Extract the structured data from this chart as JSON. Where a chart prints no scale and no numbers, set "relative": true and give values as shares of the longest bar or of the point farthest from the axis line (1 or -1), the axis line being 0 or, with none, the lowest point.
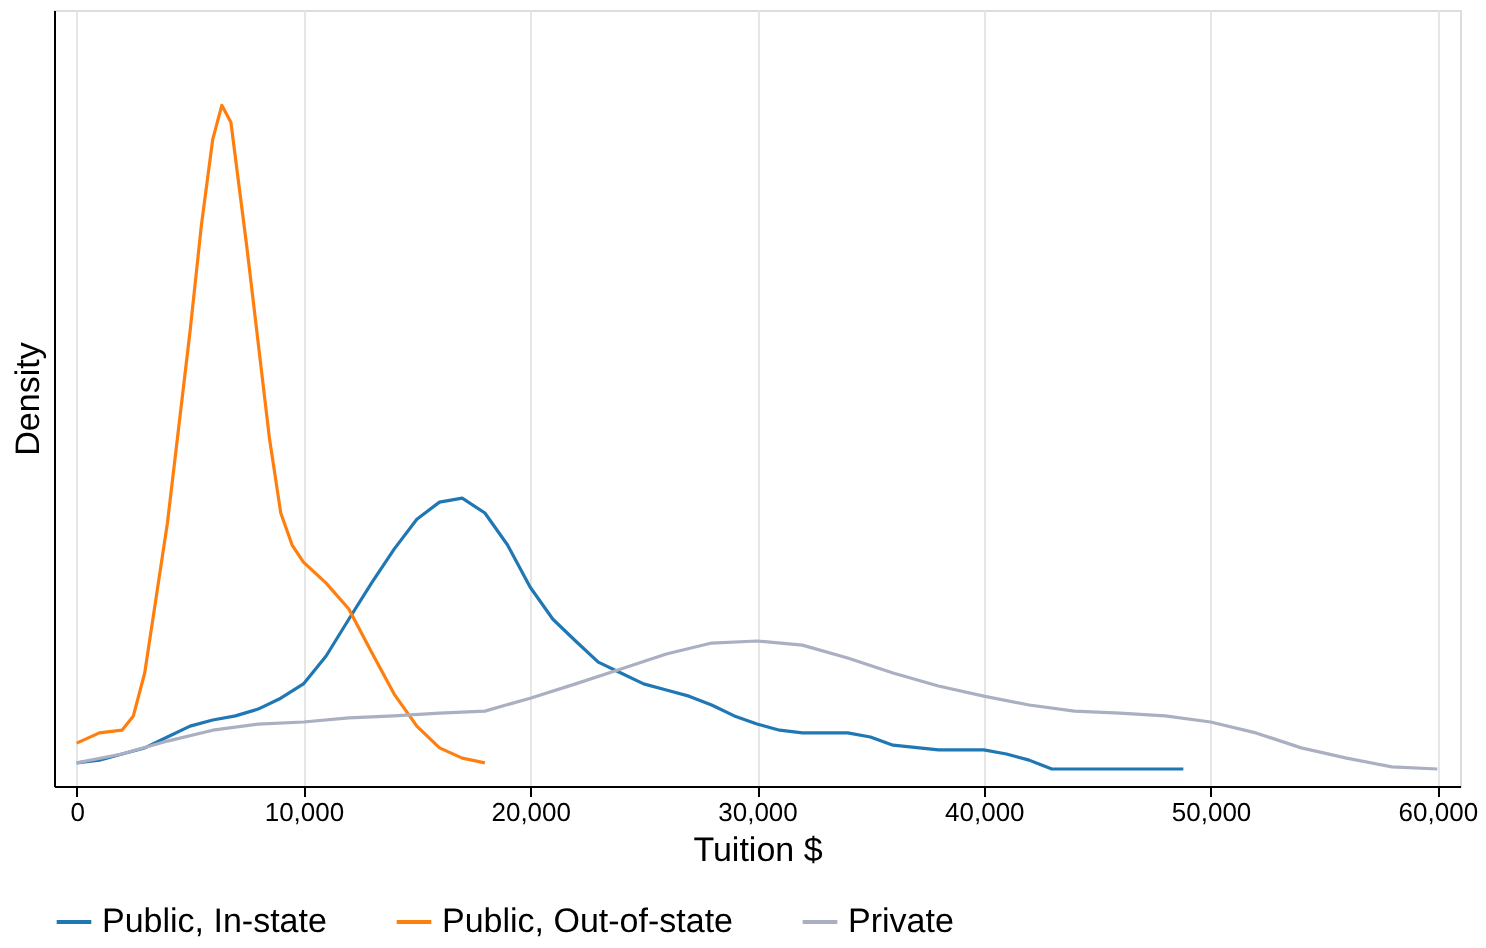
{
  "chart_data": {
    "type": "line",
    "xlabel": "Tuition $",
    "ylabel": "Density",
    "relative": true,
    "grid": "x",
    "legend": "bottom",
    "line_style": "solid",
    "marker": "none",
    "xlim": [
      -1000,
      61000
    ],
    "xticks": [
      0,
      {
        "value": 10000,
        "label": "10,000"
      },
      {
        "value": 20000,
        "label": "20,000"
      },
      {
        "value": 30000,
        "label": "30,000"
      },
      {
        "value": 40000,
        "label": "40,000"
      },
      {
        "value": 50000,
        "label": "50,000"
      },
      {
        "value": 60000,
        "label": "60,000"
      }
    ],
    "series": [
      {
        "name": "Public, In-state",
        "color": "#1f77b4",
        "x": [
          0,
          1000,
          2000,
          3000,
          4000,
          5000,
          6000,
          7000,
          8000,
          9000,
          10000,
          11000,
          12000,
          13000,
          14000,
          15000,
          16000,
          17000,
          18000,
          19000,
          20000,
          21000,
          22000,
          23000,
          24000,
          25000,
          26000,
          27000,
          28000,
          29000,
          30000,
          31000,
          32000,
          34000,
          35000,
          36000,
          38000,
          40000,
          41000,
          42000,
          43000,
          45000,
          48800
        ],
        "values": [
          0.034,
          0.038,
          0.047,
          0.056,
          0.072,
          0.088,
          0.097,
          0.103,
          0.113,
          0.129,
          0.15,
          0.191,
          0.245,
          0.298,
          0.348,
          0.392,
          0.417,
          0.423,
          0.401,
          0.354,
          0.292,
          0.245,
          0.213,
          0.182,
          0.166,
          0.15,
          0.141,
          0.132,
          0.119,
          0.103,
          0.091,
          0.082,
          0.078,
          0.078,
          0.072,
          0.06,
          0.053,
          0.053,
          0.047,
          0.038,
          0.025,
          0.025,
          0.025
        ]
      },
      {
        "name": "Public, Out-of-state",
        "color": "#ff7f0e",
        "x": [
          0,
          1000,
          2000,
          2500,
          3000,
          4000,
          5000,
          5500,
          6000,
          6400,
          6800,
          7500,
          8000,
          8500,
          9000,
          9500,
          10000,
          11000,
          12000,
          13000,
          14000,
          15000,
          16000,
          17000,
          18000
        ],
        "values": [
          0.063,
          0.078,
          0.082,
          0.103,
          0.166,
          0.386,
          0.668,
          0.824,
          0.95,
          1,
          0.975,
          0.793,
          0.652,
          0.511,
          0.401,
          0.354,
          0.329,
          0.298,
          0.26,
          0.197,
          0.135,
          0.088,
          0.056,
          0.041,
          0.034
        ]
      },
      {
        "name": "Private",
        "color": "#aab0c2",
        "x": [
          0,
          2000,
          4000,
          6000,
          8000,
          10000,
          12000,
          14000,
          16000,
          18000,
          20000,
          22000,
          24000,
          26000,
          28000,
          30000,
          32000,
          34000,
          36000,
          38000,
          40000,
          42000,
          44000,
          46000,
          48000,
          50000,
          52000,
          54000,
          56000,
          58000,
          60000
        ],
        "values": [
          0.034,
          0.047,
          0.066,
          0.082,
          0.091,
          0.094,
          0.1,
          0.103,
          0.107,
          0.11,
          0.129,
          0.15,
          0.172,
          0.194,
          0.21,
          0.213,
          0.207,
          0.188,
          0.166,
          0.147,
          0.132,
          0.119,
          0.11,
          0.107,
          0.103,
          0.094,
          0.078,
          0.056,
          0.041,
          0.028,
          0.025
        ]
      }
    ]
  }
}
